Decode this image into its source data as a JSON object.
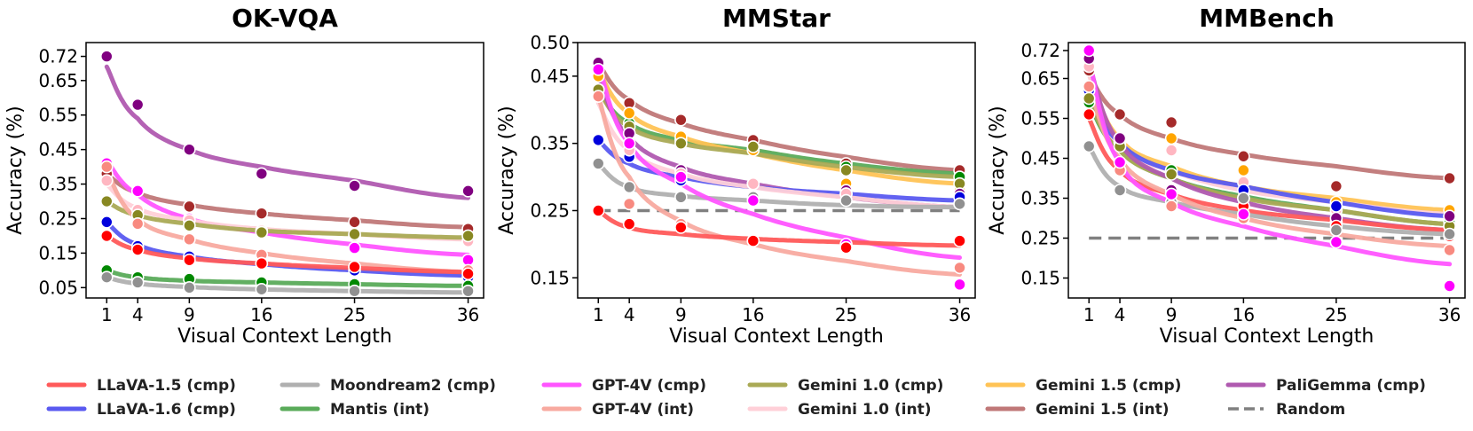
{
  "legend": [
    {
      "key": "llava15_cmp",
      "label": "LLaVA-1.5 (cmp)",
      "color": "#ff5a5a",
      "dot": "#ff0000"
    },
    {
      "key": "llava16_cmp",
      "label": "LLaVA-1.6 (cmp)",
      "color": "#5a5af0",
      "dot": "#0000dd"
    },
    {
      "key": "moondream2_cmp",
      "label": "Moondream2 (cmp)",
      "color": "#b0b0b0",
      "dot": "#909090"
    },
    {
      "key": "mantis_int",
      "label": "Mantis (int)",
      "color": "#5aab5a",
      "dot": "#008800"
    },
    {
      "key": "gpt4v_cmp",
      "label": "GPT-4V (cmp)",
      "color": "#ff55ff",
      "dot": "#ff00ff"
    },
    {
      "key": "gpt4v_int",
      "label": "GPT-4V (int)",
      "color": "#f8aaa0",
      "dot": "#f88a80"
    },
    {
      "key": "gemini10_cmp",
      "label": "Gemini 1.0 (cmp)",
      "color": "#aaaa55",
      "dot": "#888822"
    },
    {
      "key": "gemini10_int",
      "label": "Gemini 1.0 (int)",
      "color": "#ffd0d8",
      "dot": "#ffb6c1"
    },
    {
      "key": "gemini15_cmp",
      "label": "Gemini 1.5 (cmp)",
      "color": "#ffc355",
      "dot": "#ffa500"
    },
    {
      "key": "gemini15_int",
      "label": "Gemini 1.5 (int)",
      "color": "#c07878",
      "dot": "#a52a2a"
    },
    {
      "key": "paligemma_cmp",
      "label": "PaliGemma (cmp)",
      "color": "#b05ab0",
      "dot": "#800080"
    },
    {
      "key": "random",
      "label": "Random",
      "color": "#808080",
      "dashed": true
    }
  ],
  "chart_data": [
    {
      "type": "line",
      "title": "OK-VQA",
      "xlabel": "Visual Context Length",
      "ylabel": "Accuracy (%)",
      "x": [
        1,
        4,
        9,
        16,
        25,
        36
      ],
      "xlim": [
        -1,
        37.5
      ],
      "ylim": [
        0.02,
        0.76
      ],
      "yticks": [
        0.05,
        0.15,
        0.25,
        0.35,
        0.45,
        0.55,
        0.65,
        0.72
      ],
      "ytick_labels": [
        "0.05",
        "0.15",
        "0.25",
        "0.35",
        "0.45",
        "0.55",
        "0.65",
        "0.72"
      ],
      "series": [
        {
          "key": "paligemma_cmp",
          "name": "PaliGemma (cmp)",
          "values": [
            0.72,
            0.58,
            0.45,
            0.38,
            0.345,
            0.33
          ],
          "fit": [
            0.69,
            0.54,
            0.45,
            0.4,
            0.36,
            0.31
          ]
        },
        {
          "key": "gemini15_int",
          "name": "Gemini 1.5 (int)",
          "values": [
            0.38,
            0.33,
            0.285,
            0.265,
            0.24,
            0.22
          ],
          "fit": [
            0.38,
            0.325,
            0.29,
            0.265,
            0.245,
            0.225
          ]
        },
        {
          "key": "gpt4v_cmp",
          "name": "GPT-4V (cmp)",
          "values": [
            0.41,
            0.33,
            0.25,
            0.21,
            0.165,
            0.13
          ],
          "fit": [
            0.42,
            0.32,
            0.25,
            0.21,
            0.175,
            0.145
          ]
        },
        {
          "key": "gemini10_int",
          "name": "Gemini 1.0 (int)",
          "values": [
            0.36,
            0.275,
            0.245,
            0.215,
            0.2,
            0.185
          ],
          "fit": [
            0.35,
            0.28,
            0.245,
            0.22,
            0.205,
            0.19
          ]
        },
        {
          "key": "gemini10_cmp",
          "name": "Gemini 1.0 (cmp)",
          "values": [
            0.3,
            0.26,
            0.23,
            0.21,
            0.205,
            0.2
          ],
          "fit": [
            0.3,
            0.26,
            0.235,
            0.215,
            0.205,
            0.195
          ]
        },
        {
          "key": "gpt4v_int",
          "name": "GPT-4V (int)",
          "values": [
            0.4,
            0.235,
            0.19,
            0.145,
            0.11,
            0.1
          ],
          "fit": [
            0.39,
            0.25,
            0.19,
            0.15,
            0.12,
            0.095
          ]
        },
        {
          "key": "llava16_cmp",
          "name": "LLaVA-1.6 (cmp)",
          "values": [
            0.24,
            0.17,
            0.14,
            0.12,
            0.1,
            0.08
          ],
          "fit": [
            0.24,
            0.175,
            0.14,
            0.118,
            0.1,
            0.085
          ]
        },
        {
          "key": "llava15_cmp",
          "name": "LLaVA-1.5 (cmp)",
          "values": [
            0.2,
            0.16,
            0.13,
            0.12,
            0.11,
            0.09
          ],
          "fit": [
            0.2,
            0.16,
            0.135,
            0.12,
            0.107,
            0.095
          ]
        },
        {
          "key": "mantis_int",
          "name": "Mantis (int)",
          "values": [
            0.1,
            0.08,
            0.075,
            0.065,
            0.06,
            0.055
          ],
          "fit": [
            0.1,
            0.08,
            0.07,
            0.065,
            0.06,
            0.055
          ]
        },
        {
          "key": "moondream2_cmp",
          "name": "Moondream2 (cmp)",
          "values": [
            0.08,
            0.065,
            0.05,
            0.045,
            0.04,
            0.04
          ],
          "fit": [
            0.08,
            0.062,
            0.052,
            0.045,
            0.04,
            0.036
          ]
        }
      ]
    },
    {
      "type": "line",
      "title": "MMStar",
      "xlabel": "Visual Context Length",
      "ylabel": "Accuracy (%)",
      "x": [
        1,
        4,
        9,
        16,
        25,
        36
      ],
      "xlim": [
        -1,
        37.5
      ],
      "ylim": [
        0.12,
        0.5
      ],
      "yticks": [
        0.15,
        0.25,
        0.35,
        0.45,
        0.5
      ],
      "ytick_labels": [
        "0.15",
        "0.25",
        "0.35",
        "0.45",
        "0.50"
      ],
      "random": 0.25,
      "series": [
        {
          "key": "gemini15_int",
          "name": "Gemini 1.5 (int)",
          "values": [
            0.47,
            0.41,
            0.385,
            0.355,
            0.32,
            0.31
          ],
          "fit": [
            0.47,
            0.415,
            0.38,
            0.355,
            0.33,
            0.31
          ]
        },
        {
          "key": "mantis_int",
          "name": "Mantis (int)",
          "values": [
            0.43,
            0.38,
            0.355,
            0.34,
            0.315,
            0.3
          ],
          "fit": [
            0.43,
            0.38,
            0.355,
            0.34,
            0.32,
            0.305
          ]
        },
        {
          "key": "gemini15_cmp",
          "name": "Gemini 1.5 (cmp)",
          "values": [
            0.45,
            0.395,
            0.36,
            0.34,
            0.29,
            0.28
          ],
          "fit": [
            0.46,
            0.395,
            0.36,
            0.335,
            0.31,
            0.29
          ]
        },
        {
          "key": "gemini10_cmp",
          "name": "Gemini 1.0 (cmp)",
          "values": [
            0.43,
            0.375,
            0.35,
            0.345,
            0.31,
            0.29
          ],
          "fit": [
            0.43,
            0.375,
            0.35,
            0.335,
            0.315,
            0.3
          ]
        },
        {
          "key": "paligemma_cmp",
          "name": "PaliGemma (cmp)",
          "values": [
            0.47,
            0.365,
            0.31,
            0.29,
            0.28,
            0.275
          ],
          "fit": [
            0.45,
            0.36,
            0.315,
            0.29,
            0.27,
            0.255
          ]
        },
        {
          "key": "llava16_cmp",
          "name": "LLaVA-1.6 (cmp)",
          "values": [
            0.355,
            0.33,
            0.295,
            0.29,
            0.275,
            0.27
          ],
          "fit": [
            0.355,
            0.32,
            0.3,
            0.285,
            0.275,
            0.265
          ]
        },
        {
          "key": "gemini10_int",
          "name": "Gemini 1.0 (int)",
          "values": [
            0.42,
            0.34,
            0.305,
            0.29,
            0.275,
            0.26
          ],
          "fit": [
            0.41,
            0.34,
            0.305,
            0.285,
            0.27,
            0.255
          ]
        },
        {
          "key": "moondream2_cmp",
          "name": "Moondream2 (cmp)",
          "values": [
            0.32,
            0.285,
            0.27,
            0.27,
            0.265,
            0.26
          ],
          "fit": [
            0.32,
            0.285,
            0.272,
            0.265,
            0.258,
            0.255
          ]
        },
        {
          "key": "gpt4v_cmp",
          "name": "GPT-4V (cmp)",
          "values": [
            0.46,
            0.35,
            0.3,
            0.265,
            0.2,
            0.14
          ],
          "fit": [
            0.47,
            0.35,
            0.29,
            0.245,
            0.21,
            0.18
          ]
        },
        {
          "key": "gpt4v_int",
          "name": "GPT-4V (int)",
          "values": [
            0.42,
            0.26,
            0.23,
            0.205,
            0.195,
            0.165
          ],
          "fit": [
            0.42,
            0.3,
            0.235,
            0.2,
            0.175,
            0.155
          ]
        },
        {
          "key": "llava15_cmp",
          "name": "LLaVA-1.5 (cmp)",
          "values": [
            0.25,
            0.23,
            0.225,
            0.205,
            0.195,
            0.205
          ],
          "fit": [
            0.25,
            0.225,
            0.215,
            0.208,
            0.203,
            0.198
          ]
        }
      ]
    },
    {
      "type": "line",
      "title": "MMBench",
      "xlabel": "Visual Context Length",
      "ylabel": "Accuracy (%)",
      "x": [
        1,
        4,
        9,
        16,
        25,
        36
      ],
      "xlim": [
        -1,
        37.5
      ],
      "ylim": [
        0.1,
        0.74
      ],
      "yticks": [
        0.15,
        0.25,
        0.35,
        0.45,
        0.55,
        0.65,
        0.72
      ],
      "ytick_labels": [
        "0.15",
        "0.25",
        "0.35",
        "0.45",
        "0.55",
        "0.65",
        "0.72"
      ],
      "random": 0.25,
      "series": [
        {
          "key": "gemini15_int",
          "name": "Gemini 1.5 (int)",
          "values": [
            0.67,
            0.56,
            0.54,
            0.455,
            0.38,
            0.4
          ],
          "fit": [
            0.66,
            0.56,
            0.5,
            0.46,
            0.43,
            0.4
          ]
        },
        {
          "key": "gemini15_cmp",
          "name": "Gemini 1.5 (cmp)",
          "values": [
            0.69,
            0.5,
            0.5,
            0.42,
            0.34,
            0.32
          ],
          "fit": [
            0.67,
            0.5,
            0.43,
            0.38,
            0.35,
            0.32
          ]
        },
        {
          "key": "gemini10_int",
          "name": "Gemini 1.0 (int)",
          "values": [
            0.68,
            0.49,
            0.47,
            0.39,
            0.32,
            0.28
          ],
          "fit": [
            0.66,
            0.48,
            0.42,
            0.37,
            0.34,
            0.31
          ]
        },
        {
          "key": "llava16_cmp",
          "name": "LLaVA-1.6 (cmp)",
          "values": [
            0.62,
            0.5,
            0.42,
            0.37,
            0.33,
            0.305
          ],
          "fit": [
            0.62,
            0.49,
            0.42,
            0.38,
            0.34,
            0.305
          ]
        },
        {
          "key": "mantis_int",
          "name": "Mantis (int)",
          "values": [
            0.59,
            0.49,
            0.42,
            0.35,
            0.29,
            0.29
          ],
          "fit": [
            0.59,
            0.47,
            0.4,
            0.355,
            0.32,
            0.285
          ]
        },
        {
          "key": "gemini10_cmp",
          "name": "Gemini 1.0 (cmp)",
          "values": [
            0.6,
            0.48,
            0.41,
            0.35,
            0.29,
            0.28
          ],
          "fit": [
            0.6,
            0.47,
            0.4,
            0.35,
            0.32,
            0.285
          ]
        },
        {
          "key": "paligemma_cmp",
          "name": "PaliGemma (cmp)",
          "values": [
            0.7,
            0.5,
            0.37,
            0.31,
            0.3,
            0.305
          ],
          "fit": [
            0.69,
            0.49,
            0.4,
            0.34,
            0.3,
            0.27
          ]
        },
        {
          "key": "llava15_cmp",
          "name": "LLaVA-1.5 (cmp)",
          "values": [
            0.56,
            0.42,
            0.36,
            0.33,
            0.28,
            0.255
          ],
          "fit": [
            0.55,
            0.42,
            0.36,
            0.32,
            0.295,
            0.27
          ]
        },
        {
          "key": "moondream2_cmp",
          "name": "Moondream2 (cmp)",
          "values": [
            0.48,
            0.37,
            0.34,
            0.35,
            0.27,
            0.26
          ],
          "fit": [
            0.48,
            0.38,
            0.34,
            0.31,
            0.28,
            0.26
          ]
        },
        {
          "key": "gpt4v_int",
          "name": "GPT-4V (int)",
          "values": [
            0.63,
            0.42,
            0.33,
            0.3,
            0.24,
            0.22
          ],
          "fit": [
            0.64,
            0.45,
            0.36,
            0.3,
            0.26,
            0.23
          ]
        },
        {
          "key": "gpt4v_cmp",
          "name": "GPT-4V (cmp)",
          "values": [
            0.72,
            0.44,
            0.36,
            0.31,
            0.24,
            0.13
          ],
          "fit": [
            0.7,
            0.44,
            0.34,
            0.28,
            0.23,
            0.185
          ]
        }
      ]
    }
  ]
}
